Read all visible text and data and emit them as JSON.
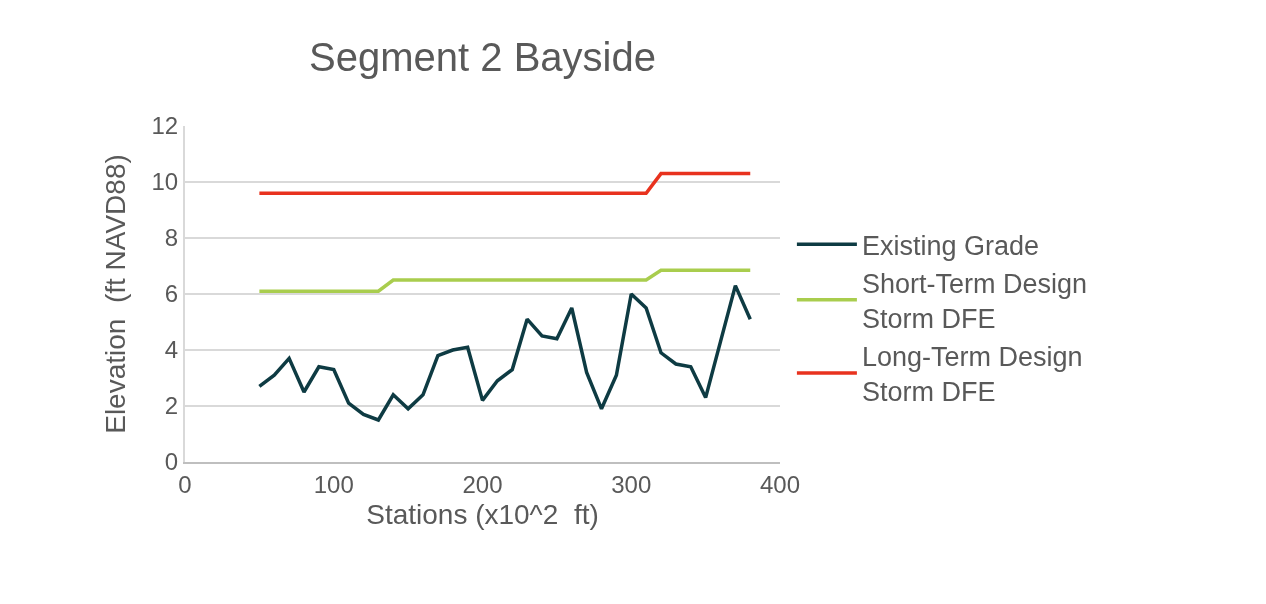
{
  "chart_data": {
    "type": "line",
    "title": "Segment 2 Bayside",
    "xlabel": "Stations (x10^2  ft)",
    "ylabel": "Elevation  (ft NAVD88)",
    "x": [
      50,
      60,
      70,
      80,
      90,
      100,
      110,
      120,
      130,
      140,
      150,
      160,
      170,
      180,
      190,
      200,
      210,
      220,
      230,
      240,
      250,
      260,
      270,
      280,
      290,
      300,
      310,
      320,
      330,
      340,
      350,
      360,
      370,
      380
    ],
    "series": [
      {
        "name": "Existing Grade",
        "color": "#0e3b43",
        "values": [
          2.7,
          3.1,
          3.7,
          2.5,
          3.4,
          3.3,
          2.1,
          1.7,
          1.5,
          2.4,
          1.9,
          2.4,
          3.8,
          4.0,
          4.1,
          2.2,
          2.9,
          3.3,
          5.1,
          4.5,
          4.4,
          5.5,
          3.2,
          1.9,
          3.1,
          6.0,
          5.5,
          3.9,
          3.5,
          3.4,
          2.3,
          4.3,
          6.3,
          5.1
        ]
      },
      {
        "name": "Short-Term Design Storm DFE",
        "color": "#a9cd4e",
        "values": [
          6.1,
          6.1,
          6.1,
          6.1,
          6.1,
          6.1,
          6.1,
          6.1,
          6.1,
          6.5,
          6.5,
          6.5,
          6.5,
          6.5,
          6.5,
          6.5,
          6.5,
          6.5,
          6.5,
          6.5,
          6.5,
          6.5,
          6.5,
          6.5,
          6.5,
          6.5,
          6.5,
          6.85,
          6.85,
          6.85,
          6.85,
          6.85,
          6.85,
          6.85
        ]
      },
      {
        "name": "Long-Term Design Storm DFE",
        "color": "#e8321e",
        "values": [
          9.6,
          9.6,
          9.6,
          9.6,
          9.6,
          9.6,
          9.6,
          9.6,
          9.6,
          9.6,
          9.6,
          9.6,
          9.6,
          9.6,
          9.6,
          9.6,
          9.6,
          9.6,
          9.6,
          9.6,
          9.6,
          9.6,
          9.6,
          9.6,
          9.6,
          9.6,
          9.6,
          10.3,
          10.3,
          10.3,
          10.3,
          10.3,
          10.3,
          10.3
        ]
      }
    ],
    "xlim": [
      0,
      400
    ],
    "xticks": [
      0,
      100,
      200,
      300,
      400
    ],
    "ylim": [
      0,
      12
    ],
    "yticks": [
      0,
      2,
      4,
      6,
      8,
      10,
      12
    ],
    "grid": "y",
    "legend": "right",
    "marker": "none",
    "line_style": "solid"
  }
}
